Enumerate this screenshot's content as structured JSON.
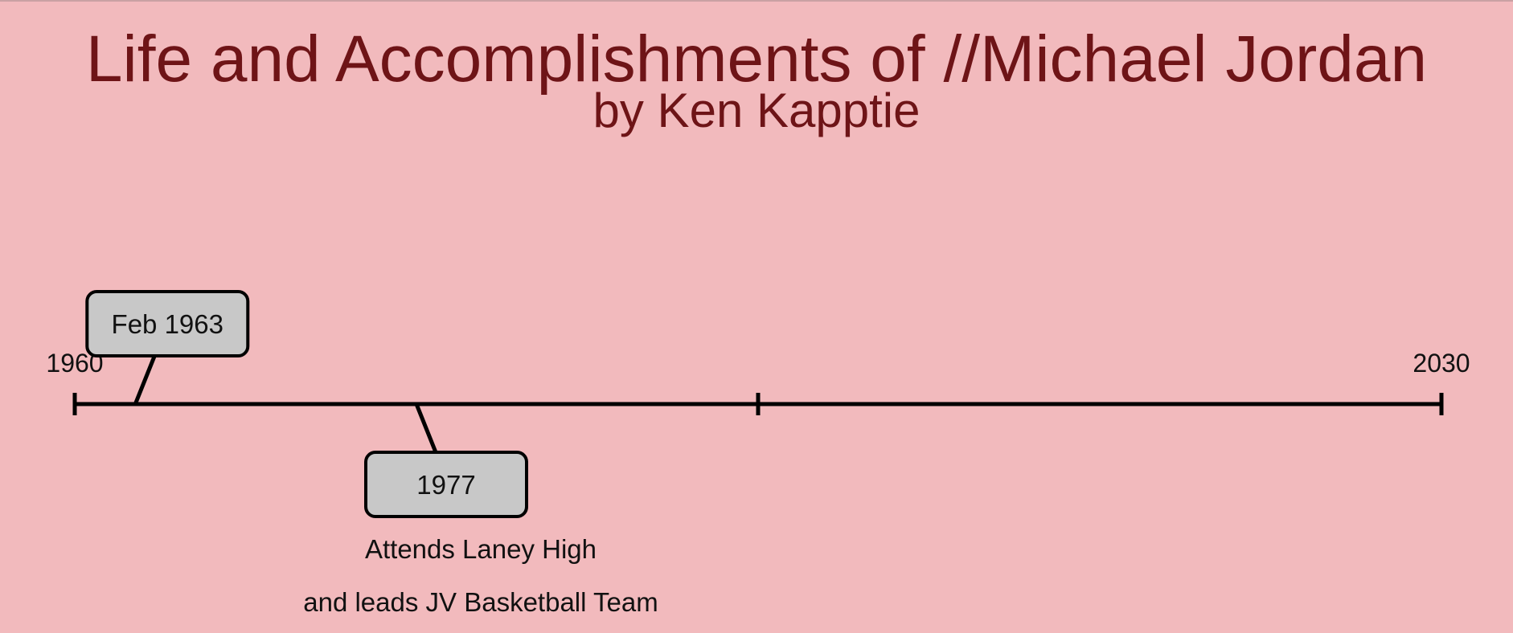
{
  "header": {
    "title": "Life and Accomplishments of //Michael Jordan",
    "subtitle": "by Ken Kapptie"
  },
  "timeline": {
    "start_label": "1960",
    "end_label": "2030",
    "start_year": 1960,
    "end_year": 2030,
    "ticks": [
      1960,
      1995,
      2030
    ],
    "events": [
      {
        "label": "Feb 1963",
        "year": 1963.1,
        "position": "above",
        "description": []
      },
      {
        "label": "1977",
        "year": 1977.5,
        "position": "below",
        "description": [
          "Attends Laney High",
          "and leads JV Basketball Team"
        ]
      }
    ]
  },
  "colors": {
    "background": "#f2babd",
    "title": "#6e1417",
    "line": "#000000",
    "box_fill": "#c8c8c8"
  }
}
